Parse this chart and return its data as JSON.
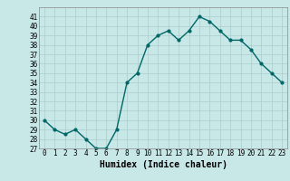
{
  "x": [
    0,
    1,
    2,
    3,
    4,
    5,
    6,
    7,
    8,
    9,
    10,
    11,
    12,
    13,
    14,
    15,
    16,
    17,
    18,
    19,
    20,
    21,
    22,
    23
  ],
  "y": [
    30,
    29,
    28.5,
    29,
    28,
    27,
    27,
    29,
    34,
    35,
    38,
    39,
    39.5,
    38.5,
    39.5,
    41,
    40.5,
    39.5,
    38.5,
    38.5,
    37.5,
    36,
    35,
    34
  ],
  "xlabel": "Humidex (Indice chaleur)",
  "xlim": [
    -0.5,
    23.5
  ],
  "ylim": [
    27,
    42
  ],
  "yticks": [
    27,
    28,
    29,
    30,
    31,
    32,
    33,
    34,
    35,
    36,
    37,
    38,
    39,
    40,
    41
  ],
  "xticks": [
    0,
    1,
    2,
    3,
    4,
    5,
    6,
    7,
    8,
    9,
    10,
    11,
    12,
    13,
    14,
    15,
    16,
    17,
    18,
    19,
    20,
    21,
    22,
    23
  ],
  "line_color": "#006666",
  "marker_color": "#006666",
  "bg_color": "#c8e8e8",
  "grid_color": "#aacccc",
  "tick_fontsize": 5.5,
  "xlabel_fontsize": 7.0,
  "linewidth": 1.0,
  "markersize": 2.0
}
